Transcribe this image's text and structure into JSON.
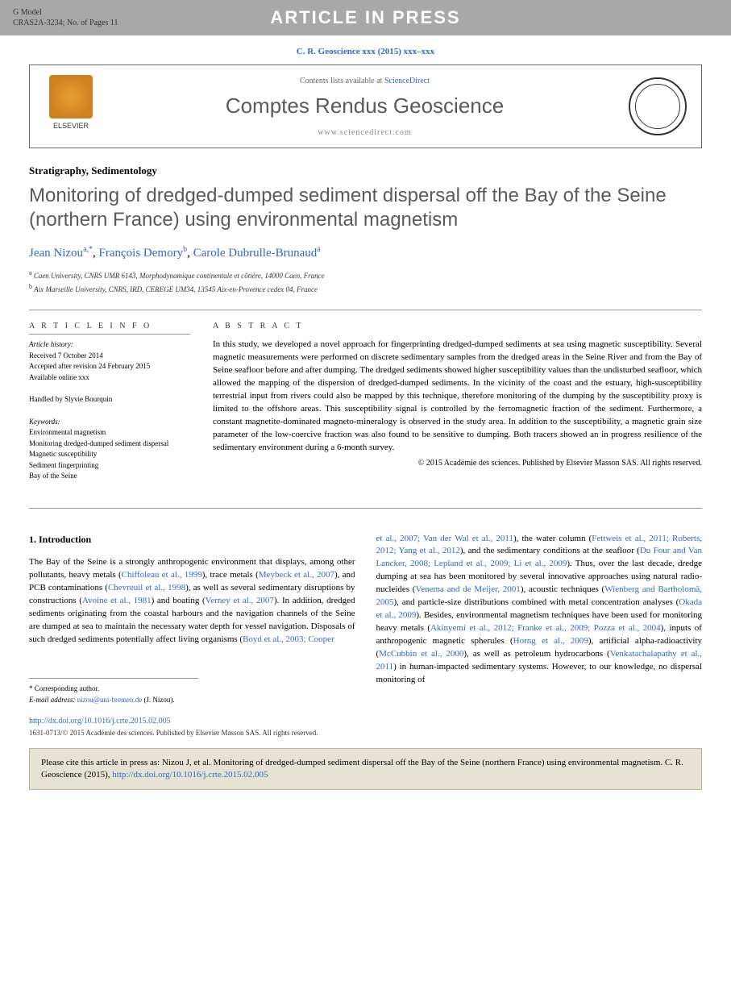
{
  "banner": {
    "model_line1": "G Model",
    "model_line2": "CRAS2A-3234; No. of Pages 11",
    "center": "ARTICLE IN PRESS"
  },
  "journal_ref": "C. R. Geoscience xxx (2015) xxx–xxx",
  "header": {
    "contents_prefix": "Contents lists available at ",
    "contents_link": "ScienceDirect",
    "journal_name": "Comptes Rendus Geoscience",
    "url": "www.sciencedirect.com",
    "elsevier": "ELSEVIER"
  },
  "article": {
    "category": "Stratigraphy, Sedimentology",
    "title": "Monitoring of dredged-dumped sediment dispersal off the Bay of the Seine (northern France) using environmental magnetism",
    "authors": [
      {
        "name": "Jean Nizou",
        "marks": "a,*"
      },
      {
        "name": "François Demory",
        "marks": "b"
      },
      {
        "name": "Carole Dubrulle-Brunaud",
        "marks": "a"
      }
    ],
    "affiliations": [
      {
        "mark": "a",
        "text": "Caen University, CNRS UMR 6143, Morphodynamique continentale et côtière, 14000 Caen, France"
      },
      {
        "mark": "b",
        "text": "Aix Marseille University, CNRS, IRD, CEREGE UM34, 13545 Aix-en-Provence cedex 04, France"
      }
    ]
  },
  "info": {
    "heading": "A R T I C L E  I N F O",
    "history_label": "Article history:",
    "received": "Received 7 October 2014",
    "accepted": "Accepted after revision 24 February 2015",
    "online": "Available online xxx",
    "handled": "Handled by Slyvie Bourquin",
    "keywords_label": "Keywords:",
    "keywords": [
      "Environmental magnetism",
      "Monitoring dredged-dumped sediment dispersal",
      "Magnetic susceptibility",
      "Sediment fingerprinting",
      "Bay of the Seine"
    ]
  },
  "abstract": {
    "heading": "A B S T R A C T",
    "text": "In this study, we developed a novel approach for fingerprinting dredged-dumped sediments at sea using magnetic susceptibility. Several magnetic measurements were performed on discrete sedimentary samples from the dredged areas in the Seine River and from the Bay of Seine seafloor before and after dumping. The dredged sediments showed higher susceptibility values than the undisturbed seafloor, which allowed the mapping of the dispersion of dredged-dumped sediments. In the vicinity of the coast and the estuary, high-susceptibility terrestrial input from rivers could also be mapped by this technique, therefore monitoring of the dumping by the susceptibility proxy is limited to the offshore areas. This susceptibility signal is controlled by the ferromagnetic fraction of the sediment. Furthermore, a constant magnetite-dominated magneto-mineralogy is observed in the study area. In addition to the susceptibility, a magnetic grain size parameter of the low-coercive fraction was also found to be sensitive to dumping. Both tracers showed an in progress resilience of the sedimentary environment during a 6-month survey.",
    "copyright": "© 2015 Académie des sciences. Published by Elsevier Masson SAS. All rights reserved."
  },
  "intro": {
    "heading": "1. Introduction",
    "col1_parts": [
      "The Bay of the Seine is a strongly anthropogenic environment that displays, among other pollutants, heavy metals (",
      "Chiffoleau et al., 1999",
      "), trace metals (",
      "Meybeck et al., 2007",
      "), and PCB contaminations (",
      "Chevreuil et al., 1998",
      "), as well as several sedimentary disruptions by constructions (",
      "Avoine et al., 1981",
      ") and boating (",
      "Verney et al., 2007",
      "). In addition, dredged sediments originating from the coastal harbours and the navigation channels of the Seine are dumped at sea to maintain the necessary water depth for vessel navigation. Disposals of such dredged sediments potentially affect living organisms (",
      "Boyd et al., 2003; Cooper"
    ],
    "col2_parts": [
      "et al., 2007; Van der Wal et al., 2011",
      "), the water column (",
      "Fettweis et al., 2011; Roberts, 2012; Yang et al., 2012",
      "), and the sedimentary conditions at the seafloor (",
      "Du Four and Van Lancker, 2008; Lepland et al., 2009; Li et al., 2009",
      "). Thus, over the last decade, dredge dumping at sea has been monitored by several innovative approaches using natural radio-nucleides (",
      "Venema and de Meijer, 2001",
      "), acoustic techniques (",
      "Wienberg and Bartholomä, 2005",
      "), and particle-size distributions combined with metal concentration analyses (",
      "Okada et al., 2009",
      "). Besides, environmental magnetism techniques have been used for monitoring heavy metals (",
      "Akinyemi et al., 2012; Franke et al., 2009; Pozza et al., 2004",
      "), inputs of anthropogenic magnetic spherules (",
      "Horng et al., 2009",
      "), artificial alpha-radioactivity (",
      "McCubbin et al., 2000",
      "), as well as petroleum hydrocarbons (",
      "Venkatachalapathy et al., 2011",
      ") in human-impacted sedimentary systems. However, to our knowledge, no dispersal monitoring of"
    ]
  },
  "corr": {
    "label": "* Corresponding author.",
    "email_label": "E-mail address:",
    "email": "nizou@uni-bremen.de",
    "who": "(J. Nizou)."
  },
  "doi": "http://dx.doi.org/10.1016/j.crte.2015.02.005",
  "bottom_copyright": "1631-0713/© 2015 Académie des sciences. Published by Elsevier Masson SAS. All rights reserved.",
  "cite_box": {
    "prefix": "Please cite this article in press as: Nizou J, et al. Monitoring of dredged-dumped sediment dispersal off the Bay of the Seine (northern France) using environmental magnetism. C. R. Geoscience (2015), ",
    "link": "http://dx.doi.org/10.1016/j.crte.2015.02.005"
  },
  "colors": {
    "banner_bg": "#a8a8a8",
    "link": "#3366cc",
    "title_gray": "#5a5a5a",
    "cite_box_bg": "#e6e2d4"
  }
}
